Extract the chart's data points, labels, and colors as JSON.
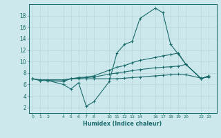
{
  "xlabel": "Humidex (Indice chaleur)",
  "background_color": "#cce8ec",
  "line_color": "#1a6b6b",
  "grid_color": "#b8d8dc",
  "xticks": [
    0,
    1,
    2,
    4,
    5,
    6,
    7,
    8,
    10,
    11,
    12,
    13,
    14,
    16,
    17,
    18,
    19,
    20,
    22,
    23
  ],
  "xtick_labels": [
    "0",
    "1",
    "2",
    "4",
    "5",
    "6",
    "7",
    "8",
    "10",
    "11",
    "12",
    "13",
    "14",
    "16",
    "17",
    "18",
    "19",
    "20",
    "22",
    "23"
  ],
  "yticks": [
    2,
    4,
    6,
    8,
    10,
    12,
    14,
    16,
    18
  ],
  "ylim": [
    1.0,
    20.0
  ],
  "xlim": [
    -0.5,
    24.0
  ],
  "lines": [
    {
      "x": [
        0,
        1,
        2,
        4,
        5,
        6,
        7,
        8,
        10,
        11,
        12,
        13,
        14,
        16,
        17,
        18,
        19,
        20,
        22,
        23
      ],
      "y": [
        7.0,
        6.7,
        6.7,
        6.0,
        5.2,
        6.3,
        2.2,
        3.0,
        6.5,
        11.5,
        13.0,
        13.5,
        17.5,
        19.3,
        18.5,
        13.0,
        11.3,
        9.5,
        7.0,
        7.5
      ]
    },
    {
      "x": [
        0,
        1,
        2,
        4,
        5,
        6,
        7,
        8,
        10,
        11,
        12,
        13,
        14,
        16,
        17,
        18,
        19,
        20,
        22,
        23
      ],
      "y": [
        7.0,
        6.7,
        6.7,
        6.5,
        7.0,
        7.2,
        7.3,
        7.5,
        8.5,
        9.0,
        9.3,
        9.8,
        10.2,
        10.7,
        11.0,
        11.2,
        11.5,
        9.5,
        7.0,
        7.5
      ]
    },
    {
      "x": [
        0,
        1,
        2,
        4,
        5,
        6,
        7,
        8,
        10,
        11,
        12,
        13,
        14,
        16,
        17,
        18,
        19,
        20,
        22,
        23
      ],
      "y": [
        7.0,
        6.8,
        6.8,
        6.8,
        7.0,
        7.1,
        7.2,
        7.3,
        7.8,
        8.0,
        8.2,
        8.4,
        8.6,
        8.9,
        9.0,
        9.1,
        9.2,
        9.5,
        7.0,
        7.5
      ]
    },
    {
      "x": [
        0,
        1,
        2,
        4,
        5,
        6,
        7,
        8,
        10,
        11,
        12,
        13,
        14,
        16,
        17,
        18,
        19,
        20,
        22,
        23
      ],
      "y": [
        7.0,
        6.8,
        6.8,
        6.8,
        7.0,
        7.0,
        7.0,
        7.0,
        7.0,
        7.0,
        7.1,
        7.2,
        7.3,
        7.5,
        7.6,
        7.7,
        7.8,
        7.7,
        7.1,
        7.3
      ]
    }
  ]
}
